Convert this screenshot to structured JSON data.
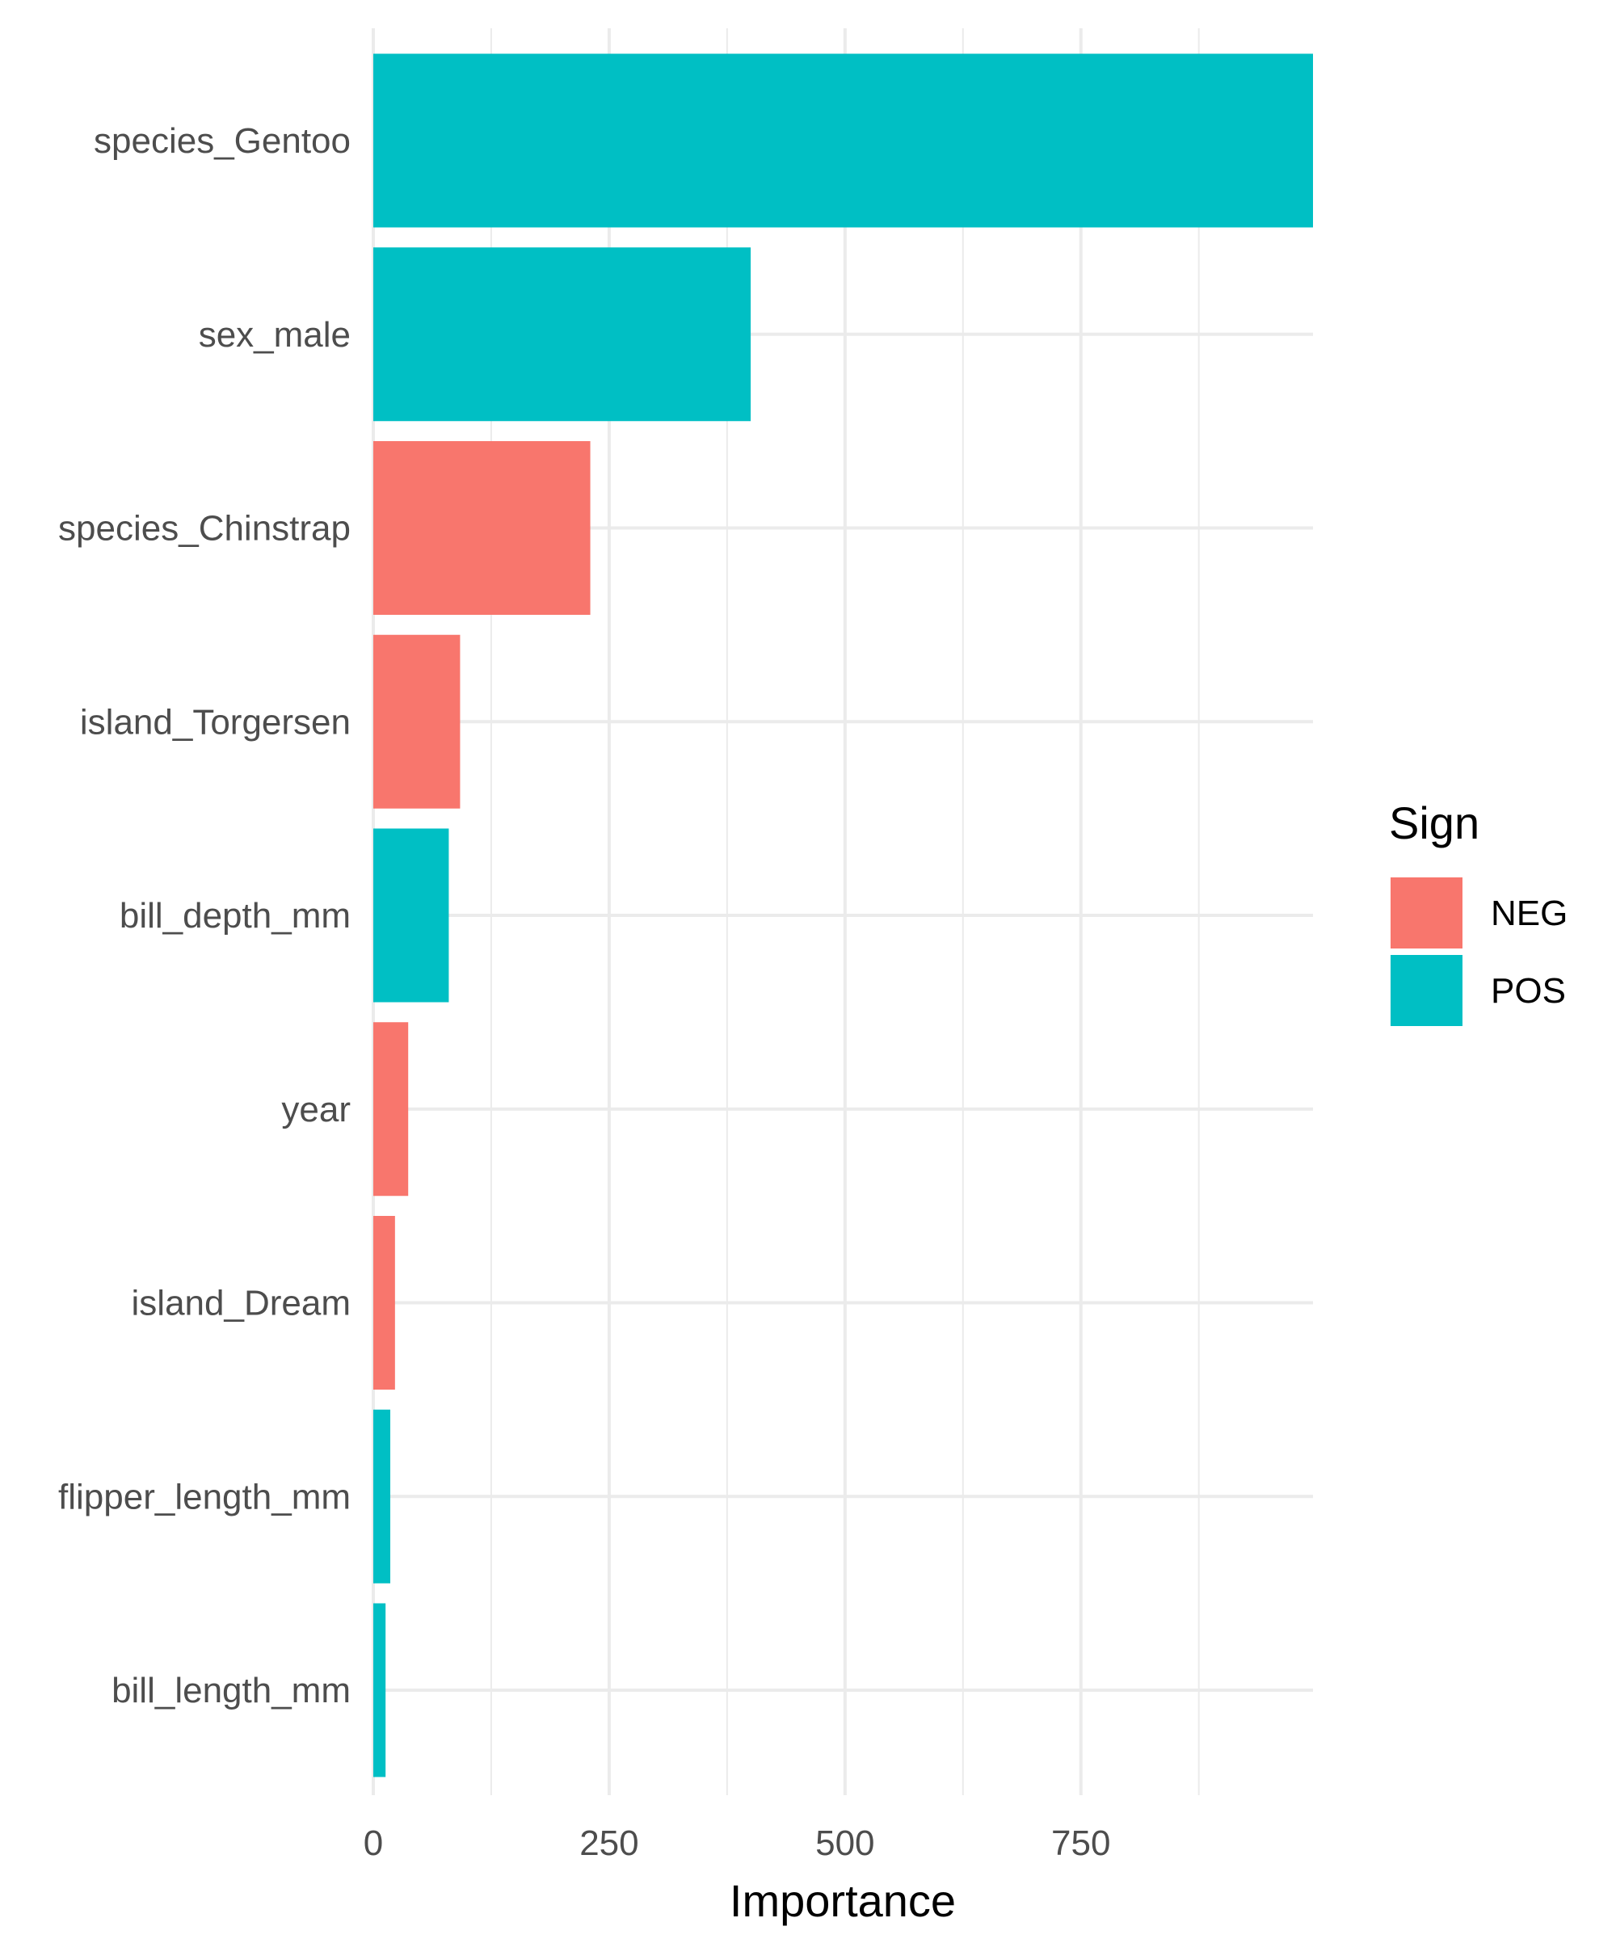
{
  "chart_data": {
    "type": "bar",
    "orientation": "horizontal",
    "categories": [
      "species_Gentoo",
      "sex_male",
      "species_Chinstrap",
      "island_Torgersen",
      "bill_depth_mm",
      "year",
      "island_Dream",
      "flipper_length_mm",
      "bill_length_mm"
    ],
    "values": [
      996,
      400,
      230,
      92,
      80,
      37,
      23,
      18,
      13
    ],
    "signs": [
      "POS",
      "POS",
      "NEG",
      "NEG",
      "POS",
      "NEG",
      "NEG",
      "POS",
      "POS"
    ],
    "xlabel": "Importance",
    "ylabel": "",
    "xlim": [
      0,
      996
    ],
    "xticks": [
      0,
      250,
      500,
      750
    ],
    "xtick_labels": [
      "0",
      "250",
      "500",
      "750"
    ],
    "grid": true,
    "legend": {
      "title": "Sign",
      "placement": "right",
      "entries": [
        {
          "label": "NEG",
          "color": "#F8766D"
        },
        {
          "label": "POS",
          "color": "#00BFC4"
        }
      ]
    }
  }
}
